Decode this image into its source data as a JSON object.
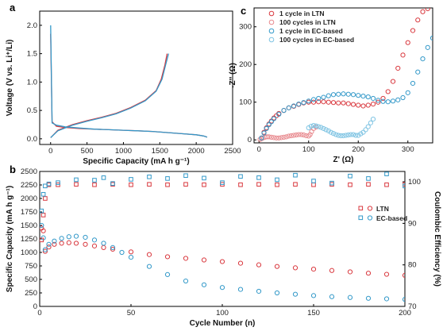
{
  "colors": {
    "red": "#d9393f",
    "blue": "#3399c9",
    "red_light": "#e88a8f",
    "blue_light": "#7fc4e3",
    "axis": "#000000"
  },
  "chart_data": [
    {
      "panel_label": "a",
      "type": "line",
      "xlabel": "Specific Capacity (mA h g⁻¹)",
      "ylabel": "Voltage (V vs. Li⁺/Li)",
      "xlim": [
        -150,
        2500
      ],
      "ylim": [
        -0.1,
        2.25
      ],
      "xticks": [
        0,
        500,
        1000,
        1500,
        2000,
        2500
      ],
      "xtick_labels": [
        "0",
        "500",
        "1000",
        "1500",
        "2000",
        "2500"
      ],
      "yticks": [
        0.0,
        0.5,
        1.0,
        1.5,
        2.0
      ],
      "ytick_labels": [
        "0.0",
        "0.5",
        "1.0",
        "1.5",
        "2.0"
      ],
      "grid": false,
      "legend": "none",
      "series": [
        {
          "color": "red",
          "x": [
            0,
            20,
            80,
            200,
            400,
            600,
            800,
            1000,
            1200,
            1400,
            1600,
            1800,
            2000,
            2100,
            2150
          ],
          "y": [
            1.85,
            0.3,
            0.22,
            0.2,
            0.18,
            0.17,
            0.16,
            0.15,
            0.14,
            0.13,
            0.11,
            0.09,
            0.07,
            0.05,
            0.03
          ]
        },
        {
          "color": "red",
          "x": [
            0,
            100,
            300,
            500,
            700,
            900,
            1100,
            1300,
            1450,
            1520,
            1570,
            1600
          ],
          "y": [
            0.02,
            0.15,
            0.25,
            0.32,
            0.38,
            0.45,
            0.55,
            0.68,
            0.85,
            1.05,
            1.3,
            1.5
          ]
        },
        {
          "color": "blue",
          "x": [
            0,
            20,
            80,
            200,
            400,
            600,
            800,
            1000,
            1200,
            1400,
            1600,
            1800,
            2000,
            2100,
            2150
          ],
          "y": [
            2.0,
            0.28,
            0.24,
            0.21,
            0.19,
            0.17,
            0.16,
            0.15,
            0.14,
            0.13,
            0.11,
            0.09,
            0.07,
            0.05,
            0.03
          ]
        },
        {
          "color": "blue",
          "x": [
            0,
            100,
            300,
            500,
            700,
            900,
            1100,
            1300,
            1450,
            1530,
            1580,
            1620
          ],
          "y": [
            0.02,
            0.14,
            0.24,
            0.31,
            0.37,
            0.44,
            0.54,
            0.67,
            0.84,
            1.05,
            1.3,
            1.5
          ]
        }
      ]
    },
    {
      "panel_label": "c",
      "type": "scatter",
      "xlabel": "Z' (Ω)",
      "ylabel": "-Z'' (Ω)",
      "xlim": [
        -10,
        350
      ],
      "ylim": [
        -8,
        350
      ],
      "xticks": [
        0,
        100,
        200,
        300
      ],
      "xtick_labels": [
        "0",
        "100",
        "200",
        "300"
      ],
      "yticks": [
        0,
        100,
        200,
        300
      ],
      "ytick_labels": [
        "0",
        "100",
        "200",
        "300"
      ],
      "grid": false,
      "legend": "top-left",
      "series": [
        {
          "name": "1 cycle in LTN",
          "color": "red",
          "marker": "open-circle",
          "x": [
            5,
            10,
            15,
            20,
            25,
            30,
            35,
            40,
            50,
            60,
            70,
            80,
            90,
            100,
            110,
            120,
            130,
            140,
            150,
            160,
            170,
            180,
            190,
            200,
            210,
            220,
            230,
            240,
            250,
            260,
            270,
            280,
            290,
            300,
            310,
            320,
            330,
            340
          ],
          "y": [
            5,
            20,
            32,
            42,
            50,
            58,
            64,
            70,
            78,
            85,
            89,
            94,
            98,
            100,
            100,
            101,
            101,
            100,
            99,
            98,
            98,
            96,
            94,
            92,
            90,
            92,
            95,
            100,
            110,
            128,
            155,
            190,
            225,
            258,
            290,
            318,
            340,
            348
          ]
        },
        {
          "name": "100 cycles in LTN",
          "color": "red_light",
          "marker": "open-circle",
          "x": [
            2,
            5,
            8,
            12,
            16,
            20,
            25,
            30,
            35,
            40,
            45,
            50,
            55,
            60,
            65,
            70,
            75,
            80,
            85,
            90,
            95,
            100,
            103,
            106,
            110,
            115
          ],
          "y": [
            1,
            3,
            5,
            7,
            8,
            8,
            7,
            6,
            5,
            5,
            6,
            7,
            8,
            10,
            11,
            12,
            13,
            14,
            14,
            13,
            11,
            10,
            14,
            22,
            30,
            34
          ]
        },
        {
          "name": "1 cycle in EC-based",
          "color": "blue",
          "marker": "open-circle",
          "x": [
            5,
            10,
            15,
            20,
            25,
            30,
            40,
            50,
            60,
            70,
            80,
            90,
            100,
            110,
            120,
            130,
            140,
            150,
            160,
            170,
            180,
            190,
            200,
            210,
            220,
            230,
            240,
            250,
            260,
            270,
            280,
            290,
            300,
            310,
            320,
            330,
            340,
            350
          ],
          "y": [
            5,
            18,
            30,
            40,
            48,
            56,
            68,
            78,
            85,
            90,
            95,
            99,
            103,
            107,
            110,
            113,
            117,
            120,
            121,
            122,
            121,
            120,
            118,
            116,
            114,
            110,
            105,
            102,
            101,
            103,
            106,
            112,
            125,
            150,
            180,
            215,
            245,
            270
          ]
        },
        {
          "name": "100 cycles in EC-based",
          "color": "blue_light",
          "marker": "open-circle",
          "x": [
            100,
            105,
            110,
            115,
            120,
            125,
            130,
            135,
            140,
            145,
            150,
            155,
            160,
            165,
            170,
            175,
            180,
            185,
            190,
            195,
            200,
            205,
            210,
            215,
            220,
            225,
            230
          ],
          "y": [
            32,
            36,
            38,
            37,
            35,
            33,
            30,
            27,
            24,
            20,
            17,
            14,
            12,
            11,
            11,
            12,
            13,
            14,
            14,
            12,
            12,
            16,
            20,
            27,
            35,
            45,
            55
          ]
        }
      ]
    },
    {
      "panel_label": "b",
      "type": "scatter",
      "xlabel": "Cycle Number (n)",
      "ylabel": "Specific Capacity (mA h g⁻¹)",
      "ylabel_right": "Coulombic Efficiency (%)",
      "xlim": [
        0,
        200
      ],
      "ylim": [
        0,
        2500
      ],
      "ylim_right": [
        70,
        102.5
      ],
      "xticks": [
        0,
        50,
        100,
        150,
        200
      ],
      "xtick_labels": [
        "0",
        "50",
        "100",
        "150",
        "200"
      ],
      "yticks": [
        0,
        250,
        500,
        750,
        1000,
        1250,
        1500,
        1750,
        2000,
        2250,
        2500
      ],
      "ytick_labels": [
        "0",
        "250",
        "500",
        "750",
        "1000",
        "1250",
        "1500",
        "1750",
        "2000",
        "2250",
        "2500"
      ],
      "yticks_right": [
        70,
        80,
        90,
        100
      ],
      "ytick_labels_right": [
        "70",
        "80",
        "90",
        "100"
      ],
      "grid": false,
      "legend": "center-right",
      "legend_entries": [
        "LTN",
        "EC-based"
      ],
      "series": [
        {
          "name": "LTN",
          "color": "red",
          "marker": "open-circle",
          "axis": "left",
          "x": [
            1,
            2,
            3,
            5,
            8,
            12,
            16,
            20,
            25,
            30,
            35,
            40,
            50,
            60,
            70,
            80,
            90,
            100,
            110,
            120,
            130,
            140,
            150,
            160,
            170,
            180,
            190,
            200
          ],
          "y": [
            1450,
            1400,
            1020,
            1100,
            1150,
            1170,
            1180,
            1170,
            1150,
            1120,
            1090,
            1060,
            1010,
            960,
            920,
            890,
            860,
            830,
            800,
            770,
            740,
            715,
            690,
            665,
            640,
            615,
            595,
            575
          ]
        },
        {
          "name": "EC-based",
          "color": "blue",
          "marker": "open-circle",
          "axis": "left",
          "x": [
            1,
            2,
            3,
            5,
            8,
            12,
            16,
            20,
            25,
            30,
            35,
            40,
            45,
            50,
            60,
            70,
            80,
            90,
            100,
            110,
            120,
            130,
            140,
            150,
            160,
            170,
            180,
            190,
            200
          ],
          "y": [
            1500,
            1270,
            1050,
            1150,
            1210,
            1260,
            1290,
            1300,
            1280,
            1230,
            1170,
            1090,
            1000,
            910,
            740,
            590,
            470,
            400,
            350,
            315,
            280,
            250,
            225,
            200,
            180,
            165,
            150,
            140,
            130
          ]
        },
        {
          "name": "LTN",
          "color": "red",
          "marker": "open-square",
          "axis": "right",
          "x": [
            1,
            2,
            3,
            5,
            10,
            20,
            30,
            40,
            50,
            60,
            70,
            80,
            90,
            100,
            110,
            120,
            130,
            140,
            150,
            160,
            170,
            180,
            190,
            200
          ],
          "y": [
            86,
            92,
            96,
            99.3,
            99.3,
            99.4,
            99.3,
            99.4,
            99.3,
            99.4,
            99.3,
            99.4,
            99.3,
            99.4,
            99.3,
            99.4,
            99.3,
            99.4,
            99.3,
            99.4,
            99.3,
            99.4,
            99.3,
            99.4
          ]
        },
        {
          "name": "EC-based",
          "color": "blue",
          "marker": "open-square",
          "axis": "right",
          "x": [
            1,
            2,
            3,
            5,
            10,
            20,
            30,
            35,
            40,
            50,
            60,
            70,
            80,
            90,
            100,
            110,
            120,
            130,
            140,
            150,
            160,
            170,
            180,
            190,
            200
          ],
          "y": [
            93,
            97,
            99,
            99.5,
            99.8,
            100.5,
            100.4,
            101,
            99.6,
            100.6,
            101.2,
            100.8,
            101.5,
            100.9,
            99.8,
            101.3,
            101,
            100.5,
            101.6,
            100.2,
            99.7,
            101.4,
            100.8,
            101.9,
            99
          ]
        }
      ]
    }
  ]
}
